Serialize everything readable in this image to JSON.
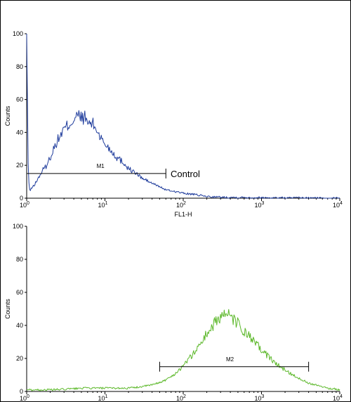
{
  "chart_data": [
    {
      "type": "line",
      "subplot": "top",
      "xlabel": "FL1-H",
      "ylabel": "Counts",
      "xscale": "log",
      "xlim": [
        1,
        10000
      ],
      "ylim": [
        0,
        100
      ],
      "yticks": [
        0,
        20,
        40,
        60,
        80,
        100
      ],
      "xticks": [
        {
          "base": "10",
          "exp": "0"
        },
        {
          "base": "10",
          "exp": "1"
        },
        {
          "base": "10",
          "exp": "2"
        },
        {
          "base": "10",
          "exp": "3"
        },
        {
          "base": "10",
          "exp": "4"
        }
      ],
      "series_color": "#1f3c9c",
      "series": [
        {
          "x": [
            1.0,
            1.05,
            1.1,
            1.15,
            1.25,
            1.4,
            1.6,
            1.8,
            2.0,
            2.3,
            2.6,
            3.0,
            3.5,
            4.0,
            4.5,
            5.0,
            5.5,
            6.0,
            7.0,
            8.0,
            9.0,
            10.0,
            12.0,
            14.0,
            17.0,
            20.0,
            25.0,
            30.0,
            40.0,
            50.0,
            60.0,
            80.0,
            100.0,
            150.0,
            200.0,
            300.0,
            500.0,
            1000.0,
            2000.0,
            5000.0,
            10000.0
          ],
          "y": [
            100,
            12,
            4,
            6,
            8,
            12,
            17,
            20,
            25,
            32,
            37,
            42,
            45,
            48,
            50,
            49,
            49,
            46,
            45,
            41,
            36,
            33,
            29,
            25,
            22,
            18,
            15,
            12,
            9,
            7,
            5,
            4,
            3,
            2,
            1,
            0.6,
            0.5,
            0.3,
            0.2,
            0.1,
            0
          ]
        }
      ],
      "gate": {
        "label": "M1",
        "x_start": 1.0,
        "x_end": 60.0,
        "y": 15
      },
      "annotations": [
        "Control"
      ]
    },
    {
      "type": "line",
      "subplot": "bottom",
      "xlabel": "",
      "ylabel": "Counts",
      "xscale": "log",
      "xlim": [
        1,
        10000
      ],
      "ylim": [
        0,
        100
      ],
      "yticks": [
        0,
        20,
        40,
        60,
        80,
        100
      ],
      "xticks": [
        {
          "base": "10",
          "exp": "0"
        },
        {
          "base": "10",
          "exp": "1"
        },
        {
          "base": "10",
          "exp": "2"
        },
        {
          "base": "10",
          "exp": "3"
        },
        {
          "base": "10",
          "exp": "4"
        }
      ],
      "series_color": "#5cb82a",
      "series": [
        {
          "x": [
            1.0,
            2.0,
            5.0,
            10.0,
            20.0,
            30.0,
            40.0,
            60.0,
            80.0,
            100.0,
            130.0,
            160.0,
            200.0,
            250.0,
            300.0,
            350.0,
            400.0,
            500.0,
            600.0,
            800.0,
            1000.0,
            1300.0,
            1600.0,
            2000.0,
            2500.0,
            3000.0,
            4000.0,
            5000.0,
            7000.0,
            10000.0
          ],
          "y": [
            1,
            1,
            2,
            2,
            2,
            3,
            4,
            7,
            11,
            16,
            22,
            28,
            35,
            41,
            46,
            47,
            45,
            41,
            36,
            30,
            25,
            20,
            16,
            13,
            10,
            8,
            5,
            4,
            2,
            1
          ]
        }
      ],
      "gate": {
        "label": "M2",
        "x_start": 50.0,
        "x_end": 4000.0,
        "y": 15
      },
      "annotations": []
    }
  ]
}
